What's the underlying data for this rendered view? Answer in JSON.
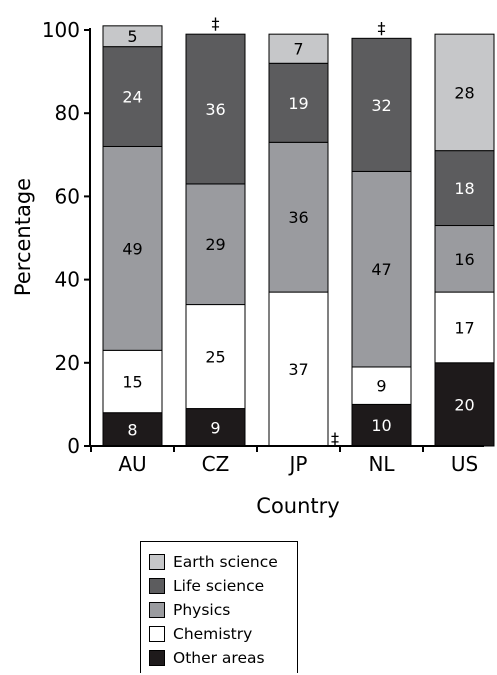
{
  "chart_data": {
    "type": "bar",
    "stacked": true,
    "categories": [
      "AU",
      "CZ",
      "JP",
      "NL",
      "US"
    ],
    "xlabel": "Country",
    "ylabel": "Percentage",
    "ylim": [
      0,
      100
    ],
    "yticks": [
      0,
      20,
      40,
      60,
      80,
      100
    ],
    "series": [
      {
        "name": "Other areas",
        "color": "#1e1a1b",
        "values": [
          8,
          9,
          0,
          10,
          20
        ],
        "labels": [
          "8",
          "9",
          "‡",
          "10",
          "20"
        ]
      },
      {
        "name": "Chemistry",
        "color": "#ffffff",
        "values": [
          15,
          25,
          37,
          9,
          17
        ],
        "labels": [
          "15",
          "25",
          "37",
          "9",
          "17"
        ]
      },
      {
        "name": "Physics",
        "color": "#9a9b9f",
        "values": [
          49,
          29,
          36,
          47,
          16
        ],
        "labels": [
          "49",
          "29",
          "36",
          "47",
          "16"
        ]
      },
      {
        "name": "Life science",
        "color": "#5c5c5e",
        "values": [
          24,
          36,
          19,
          32,
          18
        ],
        "labels": [
          "24",
          "36",
          "19",
          "32",
          "18"
        ]
      },
      {
        "name": "Earth science",
        "color": "#c6c7c9",
        "values": [
          5,
          0,
          7,
          0,
          28
        ],
        "labels": [
          "5",
          "‡",
          "7",
          "‡",
          "28"
        ]
      }
    ],
    "legend_position": "bottom-center",
    "grid": false
  },
  "legend": {
    "items": [
      {
        "label": "Earth science",
        "color": "#c6c7c9"
      },
      {
        "label": "Life science",
        "color": "#5c5c5e"
      },
      {
        "label": "Physics",
        "color": "#9a9b9f"
      },
      {
        "label": "Chemistry",
        "color": "#ffffff"
      },
      {
        "label": "Other areas",
        "color": "#1e1a1b"
      }
    ]
  }
}
